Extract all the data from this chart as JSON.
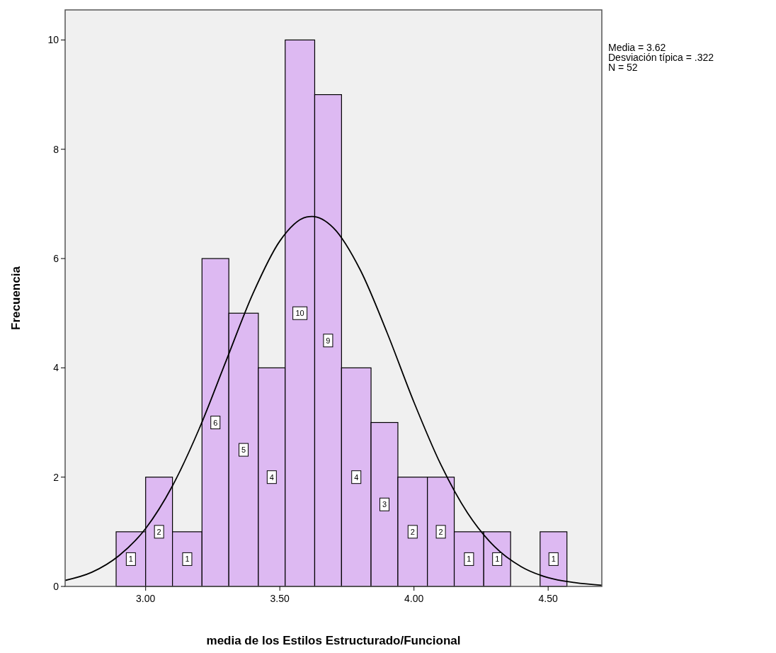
{
  "chart_data": {
    "type": "histogram",
    "xlabel": "media de los Estilos Estructurado/Funcional",
    "ylabel": "Frecuencia",
    "bins": [
      2.89,
      3.0,
      3.1,
      3.21,
      3.31,
      3.42,
      3.52,
      3.63,
      3.73,
      3.84,
      3.94,
      4.05,
      4.15,
      4.26,
      4.36,
      4.47,
      4.57
    ],
    "values": [
      1,
      2,
      1,
      6,
      5,
      4,
      10,
      9,
      4,
      3,
      2,
      2,
      1,
      1,
      0,
      1
    ],
    "color": "#ddb9f2",
    "series": [
      {
        "type": "line",
        "color": "#000000",
        "x": [
          2.7,
          2.8,
          2.9,
          3.0,
          3.1,
          3.2,
          3.3,
          3.4,
          3.5,
          3.6,
          3.62,
          3.7,
          3.8,
          3.9,
          4.0,
          4.1,
          4.2,
          4.3,
          4.4,
          4.5,
          4.6,
          4.7
        ],
        "values": [
          0.11,
          0.26,
          0.56,
          1.06,
          1.84,
          2.89,
          4.13,
          5.36,
          6.32,
          6.76,
          6.77,
          6.56,
          5.79,
          4.64,
          3.37,
          2.23,
          1.34,
          0.73,
          0.36,
          0.16,
          0.07,
          0.02
        ]
      }
    ],
    "value_labels": [
      "1",
      "2",
      "1",
      "6",
      "5",
      "4",
      "10",
      "9",
      "4",
      "3",
      "2",
      "2",
      "1",
      "1",
      null,
      "1"
    ],
    "xlim": [
      2.7,
      4.7
    ],
    "xticks": [
      {
        "value": 3,
        "label": "3.00"
      },
      {
        "value": 3.5,
        "label": "3.50"
      },
      {
        "value": 4,
        "label": "4.00"
      },
      {
        "value": 4.5,
        "label": "4.50"
      }
    ],
    "ylim": [
      0,
      10.55
    ],
    "yticks": [
      0,
      2,
      4,
      6,
      8,
      10
    ],
    "annotations": [
      "Media = 3.62",
      "Desviación típica = .322",
      "N = 52"
    ]
  }
}
